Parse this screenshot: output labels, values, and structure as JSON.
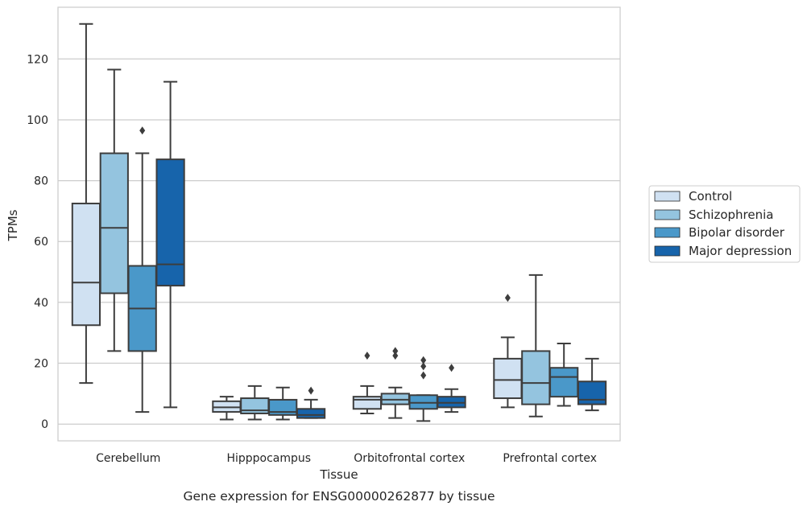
{
  "chart_data": {
    "type": "box",
    "title": "",
    "caption": "Gene expression for ENSG00000262877 by tissue",
    "xlabel": "Tissue",
    "ylabel": "TPMs",
    "ylim": [
      -5.5,
      137
    ],
    "yticks": [
      0,
      20,
      40,
      60,
      80,
      100,
      120
    ],
    "grid": "horizontal",
    "legend_position": "right",
    "categories": [
      "Cerebellum",
      "Hipppocampus",
      "Orbitofrontal cortex",
      "Prefrontal cortex"
    ],
    "series": [
      {
        "name": "Control",
        "color": "#d0e1f2",
        "boxes": [
          {
            "whislo": 13.5,
            "q1": 32.5,
            "med": 46.5,
            "q3": 72.5,
            "whishi": 131.5,
            "fliers": []
          },
          {
            "whislo": 1.5,
            "q1": 4.0,
            "med": 5.5,
            "q3": 7.5,
            "whishi": 9.0,
            "fliers": []
          },
          {
            "whislo": 3.5,
            "q1": 5.0,
            "med": 8.0,
            "q3": 9.0,
            "whishi": 12.5,
            "fliers": [
              22.5
            ]
          },
          {
            "whislo": 5.5,
            "q1": 8.5,
            "med": 14.5,
            "q3": 21.5,
            "whishi": 28.5,
            "fliers": [
              41.5
            ]
          }
        ]
      },
      {
        "name": "Schizophrenia",
        "color": "#94c4df",
        "boxes": [
          {
            "whislo": 24.0,
            "q1": 43.0,
            "med": 64.5,
            "q3": 89.0,
            "whishi": 116.5,
            "fliers": []
          },
          {
            "whislo": 1.5,
            "q1": 3.5,
            "med": 4.5,
            "q3": 8.5,
            "whishi": 12.5,
            "fliers": []
          },
          {
            "whislo": 2.0,
            "q1": 6.5,
            "med": 8.0,
            "q3": 10.0,
            "whishi": 12.0,
            "fliers": [
              22.5,
              24.0
            ]
          },
          {
            "whislo": 2.5,
            "q1": 6.5,
            "med": 13.5,
            "q3": 24.0,
            "whishi": 49.0,
            "fliers": []
          }
        ]
      },
      {
        "name": "Bipolar disorder",
        "color": "#4a98c9",
        "boxes": [
          {
            "whislo": 4.0,
            "q1": 24.0,
            "med": 38.0,
            "q3": 52.0,
            "whishi": 89.0,
            "fliers": [
              96.5
            ]
          },
          {
            "whislo": 1.5,
            "q1": 3.0,
            "med": 4.0,
            "q3": 8.0,
            "whishi": 12.0,
            "fliers": []
          },
          {
            "whislo": 1.0,
            "q1": 5.0,
            "med": 7.0,
            "q3": 9.5,
            "whishi": 9.5,
            "fliers": [
              16.0,
              19.0,
              21.0
            ]
          },
          {
            "whislo": 6.0,
            "q1": 9.0,
            "med": 15.5,
            "q3": 18.5,
            "whishi": 26.5,
            "fliers": []
          }
        ]
      },
      {
        "name": "Major depression",
        "color": "#1764ab",
        "boxes": [
          {
            "whislo": 5.5,
            "q1": 45.5,
            "med": 52.5,
            "q3": 87.0,
            "whishi": 112.5,
            "fliers": []
          },
          {
            "whislo": 2.0,
            "q1": 2.0,
            "med": 3.0,
            "q3": 5.0,
            "whishi": 8.0,
            "fliers": [
              11.0
            ]
          },
          {
            "whislo": 4.0,
            "q1": 5.5,
            "med": 7.0,
            "q3": 9.0,
            "whishi": 11.5,
            "fliers": [
              18.5
            ]
          },
          {
            "whislo": 4.5,
            "q1": 6.5,
            "med": 8.0,
            "q3": 14.0,
            "whishi": 21.5,
            "fliers": []
          }
        ]
      }
    ]
  }
}
